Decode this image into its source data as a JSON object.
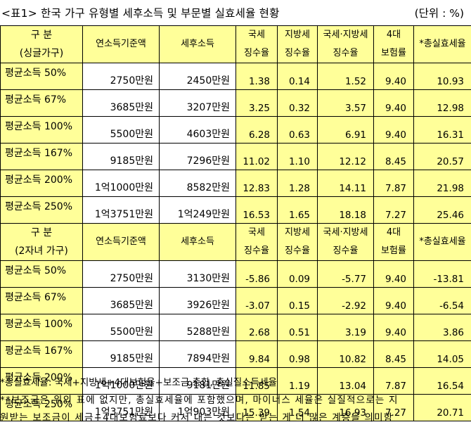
{
  "title": "<표1> 한국 가구 유형별 세후소득 및 부문별 실효세율 현황",
  "unit": "(단위 : %)",
  "columns": {
    "c1": "연소득기준액",
    "c2": "세후소득",
    "c3": [
      "국세",
      "징수율"
    ],
    "c4": [
      "지방세",
      "징수율"
    ],
    "c5": [
      "국세·지방세",
      "징수율"
    ],
    "c6": [
      "4대",
      "보험률"
    ],
    "c7": "*총실효세율"
  },
  "sections": [
    {
      "category": [
        "구    분",
        "(싱글가구)"
      ],
      "rows": [
        {
          "label": "평균소득 50%",
          "income": "2750만원",
          "after_tax": "2450만원",
          "national": "1.38",
          "local": "0.14",
          "combined": "1.52",
          "insurance": "9.40",
          "total": "10.93"
        },
        {
          "label": "평균소득 67%",
          "income": "3685만원",
          "after_tax": "3207만원",
          "national": "3.25",
          "local": "0.32",
          "combined": "3.57",
          "insurance": "9.40",
          "total": "12.98"
        },
        {
          "label": "평균소득 100%",
          "income": "5500만원",
          "after_tax": "4603만원",
          "national": "6.28",
          "local": "0.63",
          "combined": "6.91",
          "insurance": "9.40",
          "total": "16.31"
        },
        {
          "label": "평균소득 167%",
          "income": "9185만원",
          "after_tax": "7296만원",
          "national": "11.02",
          "local": "1.10",
          "combined": "12.12",
          "insurance": "8.45",
          "total": "20.57"
        },
        {
          "label": "평균소득 200%",
          "income": "1억1000만원",
          "after_tax": "8582만원",
          "national": "12.83",
          "local": "1.28",
          "combined": "14.11",
          "insurance": "7.87",
          "total": "21.98"
        },
        {
          "label": "평균소득 250%",
          "income": "1억3751만원",
          "after_tax": "1억249만원",
          "national": "16.53",
          "local": "1.65",
          "combined": "18.18",
          "insurance": "7.27",
          "total": "25.46"
        }
      ]
    },
    {
      "category": [
        "구    분",
        "(2자녀 가구)"
      ],
      "rows": [
        {
          "label": "평균소득 50%",
          "income": "2750만원",
          "after_tax": "3130만원",
          "national": "-5.86",
          "local": "0.09",
          "combined": "-5.77",
          "insurance": "9.40",
          "total": "-13.81"
        },
        {
          "label": "평균소득 67%",
          "income": "3685만원",
          "after_tax": "3926만원",
          "national": "-3.07",
          "local": "0.15",
          "combined": "-2.92",
          "insurance": "9.40",
          "total": "-6.54"
        },
        {
          "label": "평균소득 100%",
          "income": "5500만원",
          "after_tax": "5288만원",
          "national": "2.68",
          "local": "0.51",
          "combined": "3.19",
          "insurance": "9.40",
          "total": "3.86"
        },
        {
          "label": "평균소득 167%",
          "income": "9185만원",
          "after_tax": "7894만원",
          "national": "9.84",
          "local": "0.98",
          "combined": "10.82",
          "insurance": "8.45",
          "total": "14.05"
        },
        {
          "label": "평균소득 200%",
          "income": "1억1000만원",
          "after_tax": "9181만원",
          "national": "11.85",
          "local": "1.19",
          "combined": "13.04",
          "insurance": "7.87",
          "total": "16.54"
        },
        {
          "label": "평균소득 250%",
          "income": "1억3751만원",
          "after_tax": "1억903만원",
          "national": "15.39",
          "local": "1.54",
          "combined": "16.93",
          "insurance": "7.27",
          "total": "20.71"
        }
      ]
    }
  ],
  "notes": [
    "*총실효세율: 국세+지방세+4대보험율+보조금 총합, 총실질소득세율",
    "**보조금은 위의 표에 없지만, 총실효세율에 포함했으며, 마이너스 세율은 실질적으로는 지",
    "원받는 보조금이 세금+4대보험료보다 커서 내는 것보다는 받는 게 더 많은 계층을 의미함"
  ]
}
